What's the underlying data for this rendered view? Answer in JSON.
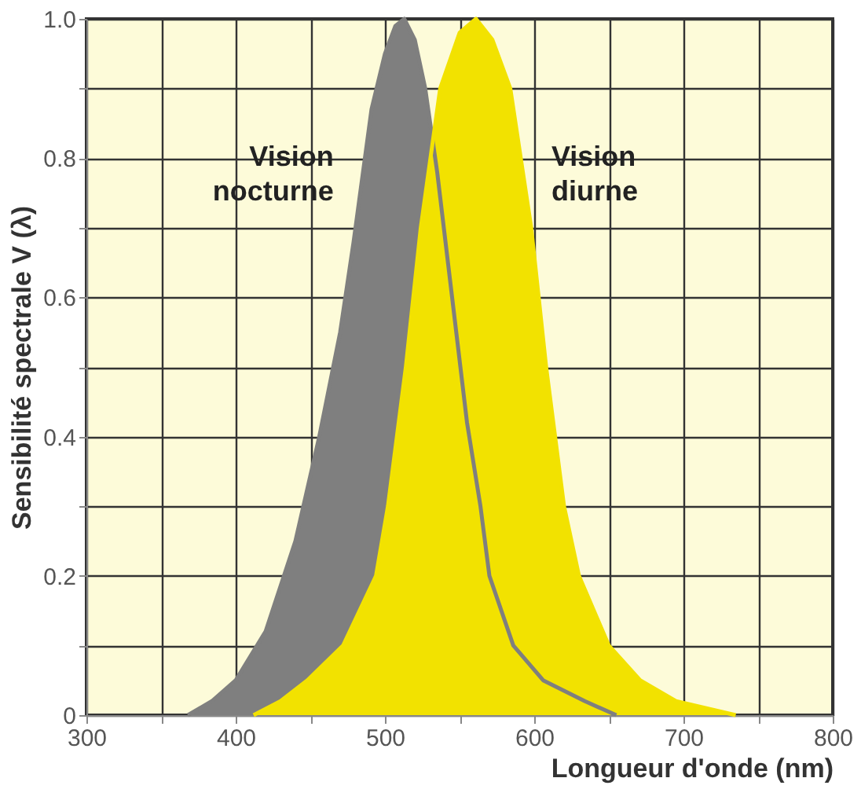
{
  "chart_data": {
    "type": "area",
    "xlabel": "Longueur d'onde (nm)",
    "ylabel": "Sensibilité spectrale V (λ)",
    "xlim": [
      300,
      800
    ],
    "ylim": [
      0,
      1.0
    ],
    "xticks": [
      300,
      {
        "value": 350,
        "label": null
      },
      400,
      {
        "value": 450,
        "label": null
      },
      500,
      {
        "value": 550,
        "label": null
      },
      600,
      {
        "value": 650,
        "label": null
      },
      700,
      {
        "value": 750,
        "label": null
      },
      800
    ],
    "yticks": [
      0,
      {
        "value": 0.1,
        "label": null
      },
      0.2,
      {
        "value": 0.3,
        "label": null
      },
      0.4,
      {
        "value": 0.5,
        "label": null
      },
      0.6,
      {
        "value": 0.7,
        "label": null
      },
      0.8,
      {
        "value": 0.9,
        "label": null
      },
      {
        "value": 1,
        "label": "1.0"
      }
    ],
    "grid": true,
    "series": [
      {
        "name": "Vision nocturne",
        "color": "#7f7f7f",
        "x": [
          368,
          384,
          400,
          420,
          440,
          456,
          470,
          479,
          491,
          500,
          507,
          513,
          520,
          527,
          535,
          545,
          555,
          564,
          570,
          586,
          606,
          634,
          655
        ],
        "values": [
          0,
          0.02,
          0.05,
          0.12,
          0.25,
          0.4,
          0.55,
          0.68,
          0.87,
          0.95,
          0.99,
          1.0,
          0.97,
          0.9,
          0.78,
          0.6,
          0.42,
          0.3,
          0.2,
          0.1,
          0.05,
          0.02,
          0
        ]
      },
      {
        "name": "Vision diurne",
        "color": "#f2e200",
        "x": [
          412,
          430,
          448,
          472,
          494,
          502,
          514,
          524,
          537,
          550,
          561,
          572,
          584,
          598,
          608,
          620,
          630,
          650,
          671,
          695,
          735
        ],
        "values": [
          0,
          0.02,
          0.05,
          0.1,
          0.2,
          0.3,
          0.5,
          0.7,
          0.9,
          0.98,
          1.0,
          0.97,
          0.9,
          0.7,
          0.5,
          0.3,
          0.2,
          0.1,
          0.05,
          0.02,
          0
        ]
      }
    ]
  }
}
